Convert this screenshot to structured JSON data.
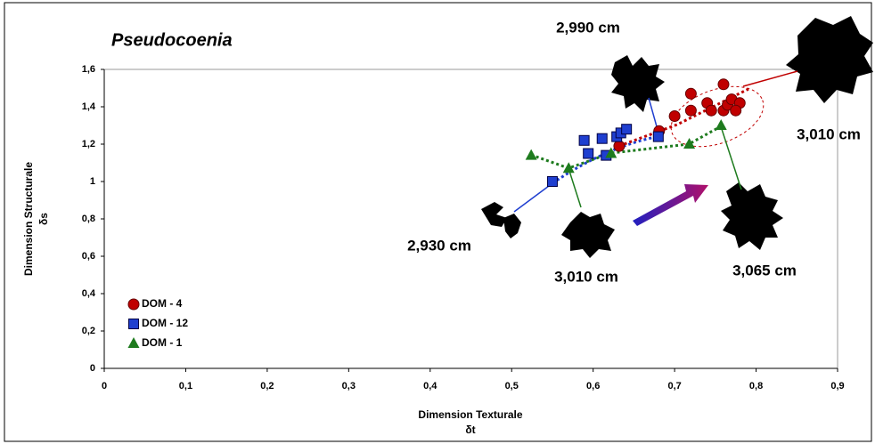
{
  "chart_data": {
    "type": "scatter",
    "title": "Pseudocoenia",
    "xlabel": [
      "Dimension Texturale",
      "δt"
    ],
    "ylabel": [
      "Dimension Structurale",
      "δs"
    ],
    "xlim": [
      0,
      0.9
    ],
    "ylim": [
      0,
      1.6
    ],
    "xticks": [
      0,
      {
        "value": 0.1,
        "label": "0,1"
      },
      {
        "value": 0.2,
        "label": "0,2"
      },
      {
        "value": 0.3,
        "label": "0,3"
      },
      {
        "value": 0.4,
        "label": "0,4"
      },
      {
        "value": 0.5,
        "label": "0,5"
      },
      {
        "value": 0.6,
        "label": "0,6"
      },
      {
        "value": 0.7,
        "label": "0,7"
      },
      {
        "value": 0.8,
        "label": "0,8"
      },
      {
        "value": 0.9,
        "label": "0,9"
      }
    ],
    "yticks": [
      0,
      {
        "value": 0.2,
        "label": "0,2"
      },
      {
        "value": 0.4,
        "label": "0,4"
      },
      {
        "value": 0.6,
        "label": "0,6"
      },
      {
        "value": 0.8,
        "label": "0,8"
      },
      1,
      {
        "value": 1.2,
        "label": "1,2"
      },
      {
        "value": 1.4,
        "label": "1,4"
      },
      {
        "value": 1.6,
        "label": "1,6"
      }
    ],
    "series": [
      {
        "name": "DOM - 4",
        "color": "#c00000",
        "marker": "circle",
        "x": [
          0.632,
          0.681,
          0.7,
          0.72,
          0.72,
          0.74,
          0.745,
          0.76,
          0.765,
          0.77,
          0.78,
          0.76,
          0.775
        ],
        "y": [
          1.19,
          1.27,
          1.35,
          1.38,
          1.47,
          1.42,
          1.38,
          1.38,
          1.41,
          1.44,
          1.42,
          1.52,
          1.38
        ]
      },
      {
        "name": "DOM - 12",
        "color": "#1f3fd0",
        "marker": "square",
        "x": [
          0.55,
          0.589,
          0.594,
          0.611,
          0.616,
          0.629,
          0.634,
          0.641,
          0.68
        ],
        "y": [
          1.0,
          1.22,
          1.15,
          1.23,
          1.14,
          1.24,
          1.26,
          1.28,
          1.24
        ]
      },
      {
        "name": "DOM - 1",
        "color": "#1e7b1e",
        "marker": "triangle",
        "x": [
          0.524,
          0.57,
          0.622,
          0.718,
          0.757
        ],
        "y": [
          1.14,
          1.07,
          1.15,
          1.2,
          1.3
        ]
      }
    ],
    "annotations": [
      {
        "text": "2,990 cm",
        "color": "#1f3fd0"
      },
      {
        "text": "2,930 cm",
        "color": "#1f3fd0"
      },
      {
        "text": "3,010 cm",
        "color": "#1e7b1e"
      },
      {
        "text": "3,065 cm",
        "color": "#1e7b1e"
      },
      {
        "text": "3,010 cm",
        "color": "#c00000"
      }
    ]
  }
}
